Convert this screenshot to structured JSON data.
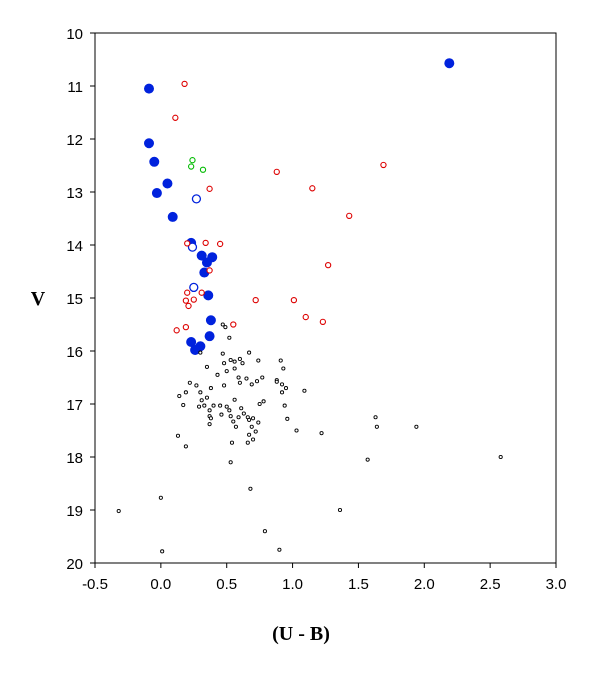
{
  "chart_data": {
    "type": "scatter",
    "title": "",
    "xlabel": "(U - B)",
    "ylabel": "V",
    "xlim": [
      -0.5,
      3.0
    ],
    "ylim": [
      20,
      10
    ],
    "y_inverted": true,
    "grid": false,
    "legend": "none",
    "x_ticks": [
      "-0.5",
      "0.0",
      "0.5",
      "1.0",
      "1.5",
      "2.0",
      "2.5",
      "3.0"
    ],
    "y_ticks": [
      "10",
      "11",
      "12",
      "13",
      "14",
      "15",
      "16",
      "17",
      "18",
      "19",
      "20"
    ],
    "series": [
      {
        "style": "filled-circle",
        "color": "#0022dd",
        "points": [
          [
            -0.09,
            11.05
          ],
          [
            -0.09,
            12.08
          ],
          [
            -0.05,
            12.43
          ],
          [
            0.05,
            12.84
          ],
          [
            -0.03,
            13.02
          ],
          [
            0.09,
            13.47
          ],
          [
            0.23,
            13.96
          ],
          [
            0.31,
            14.2
          ],
          [
            0.39,
            14.23
          ],
          [
            0.35,
            14.33
          ],
          [
            0.33,
            14.52
          ],
          [
            0.36,
            14.95
          ],
          [
            0.38,
            15.42
          ],
          [
            0.37,
            15.72
          ],
          [
            0.23,
            15.83
          ],
          [
            0.3,
            15.91
          ],
          [
            0.26,
            15.98
          ],
          [
            2.19,
            10.57
          ]
        ]
      },
      {
        "style": "open-circle",
        "color": "#0022dd",
        "points": [
          [
            0.27,
            13.13
          ],
          [
            0.24,
            14.04
          ],
          [
            0.25,
            14.8
          ]
        ]
      },
      {
        "style": "small-open-circle",
        "color": "#dd0000",
        "points": [
          [
            0.18,
            10.96
          ],
          [
            0.11,
            11.6
          ],
          [
            0.37,
            12.94
          ],
          [
            0.88,
            12.62
          ],
          [
            1.15,
            12.93
          ],
          [
            1.69,
            12.49
          ],
          [
            1.43,
            13.45
          ],
          [
            0.2,
            13.97
          ],
          [
            0.34,
            13.96
          ],
          [
            0.45,
            13.98
          ],
          [
            0.37,
            14.48
          ],
          [
            1.27,
            14.38
          ],
          [
            0.2,
            14.9
          ],
          [
            0.31,
            14.9
          ],
          [
            0.19,
            15.05
          ],
          [
            0.25,
            15.03
          ],
          [
            0.21,
            15.15
          ],
          [
            0.72,
            15.04
          ],
          [
            1.01,
            15.04
          ],
          [
            1.1,
            15.36
          ],
          [
            1.23,
            15.45
          ],
          [
            0.55,
            15.5
          ],
          [
            0.19,
            15.55
          ],
          [
            0.12,
            15.61
          ]
        ]
      },
      {
        "style": "small-open-circle",
        "color": "#00bb00",
        "points": [
          [
            0.24,
            12.4
          ],
          [
            0.23,
            12.52
          ],
          [
            0.32,
            12.58
          ]
        ]
      },
      {
        "style": "tiny-open-circle",
        "color": "#000000",
        "points": [
          [
            0.3,
            16.03
          ],
          [
            0.47,
            15.5
          ],
          [
            0.49,
            15.55
          ],
          [
            0.52,
            15.75
          ],
          [
            0.47,
            16.05
          ],
          [
            0.53,
            16.17
          ],
          [
            0.48,
            16.23
          ],
          [
            0.56,
            16.2
          ],
          [
            0.6,
            16.15
          ],
          [
            0.56,
            16.33
          ],
          [
            0.5,
            16.38
          ],
          [
            0.62,
            16.23
          ],
          [
            0.67,
            16.03
          ],
          [
            0.74,
            16.18
          ],
          [
            0.35,
            16.3
          ],
          [
            0.43,
            16.45
          ],
          [
            0.59,
            16.5
          ],
          [
            0.65,
            16.52
          ],
          [
            0.88,
            16.55
          ],
          [
            0.91,
            16.18
          ],
          [
            0.93,
            16.33
          ],
          [
            0.92,
            16.63
          ],
          [
            0.95,
            16.7
          ],
          [
            0.92,
            16.78
          ],
          [
            0.88,
            16.58
          ],
          [
            0.77,
            16.5
          ],
          [
            0.73,
            16.57
          ],
          [
            0.69,
            16.63
          ],
          [
            0.6,
            16.6
          ],
          [
            0.48,
            16.65
          ],
          [
            0.38,
            16.7
          ],
          [
            0.27,
            16.65
          ],
          [
            0.22,
            16.6
          ],
          [
            0.19,
            16.78
          ],
          [
            0.14,
            16.85
          ],
          [
            0.17,
            17.02
          ],
          [
            0.3,
            16.78
          ],
          [
            0.31,
            16.93
          ],
          [
            0.35,
            16.88
          ],
          [
            0.4,
            17.03
          ],
          [
            0.37,
            17.12
          ],
          [
            0.37,
            17.23
          ],
          [
            0.38,
            17.27
          ],
          [
            0.37,
            17.38
          ],
          [
            0.33,
            17.03
          ],
          [
            0.29,
            17.05
          ],
          [
            0.45,
            17.03
          ],
          [
            0.46,
            17.2
          ],
          [
            0.5,
            17.05
          ],
          [
            0.52,
            17.12
          ],
          [
            0.56,
            16.92
          ],
          [
            0.61,
            17.08
          ],
          [
            0.63,
            17.18
          ],
          [
            0.66,
            17.25
          ],
          [
            0.59,
            17.25
          ],
          [
            0.67,
            17.3
          ],
          [
            0.7,
            17.27
          ],
          [
            0.74,
            17.35
          ],
          [
            0.69,
            17.43
          ],
          [
            0.72,
            17.52
          ],
          [
            0.67,
            17.58
          ],
          [
            0.7,
            17.67
          ],
          [
            0.66,
            17.73
          ],
          [
            0.55,
            17.33
          ],
          [
            0.53,
            17.23
          ],
          [
            0.57,
            17.43
          ],
          [
            0.54,
            17.73
          ],
          [
            0.75,
            17.0
          ],
          [
            0.78,
            16.95
          ],
          [
            0.94,
            17.03
          ],
          [
            0.96,
            17.28
          ],
          [
            1.03,
            17.5
          ],
          [
            1.09,
            16.75
          ],
          [
            1.22,
            17.55
          ],
          [
            1.63,
            17.25
          ],
          [
            1.64,
            17.43
          ],
          [
            1.94,
            17.43
          ],
          [
            0.13,
            17.6
          ],
          [
            0.19,
            17.8
          ],
          [
            0.53,
            18.1
          ],
          [
            1.57,
            18.05
          ],
          [
            2.58,
            18.0
          ],
          [
            0.68,
            18.6
          ],
          [
            -0.32,
            19.02
          ],
          [
            0.0,
            18.77
          ],
          [
            1.36,
            19.0
          ],
          [
            0.79,
            19.4
          ],
          [
            0.9,
            19.75
          ],
          [
            0.01,
            19.78
          ]
        ]
      }
    ]
  }
}
